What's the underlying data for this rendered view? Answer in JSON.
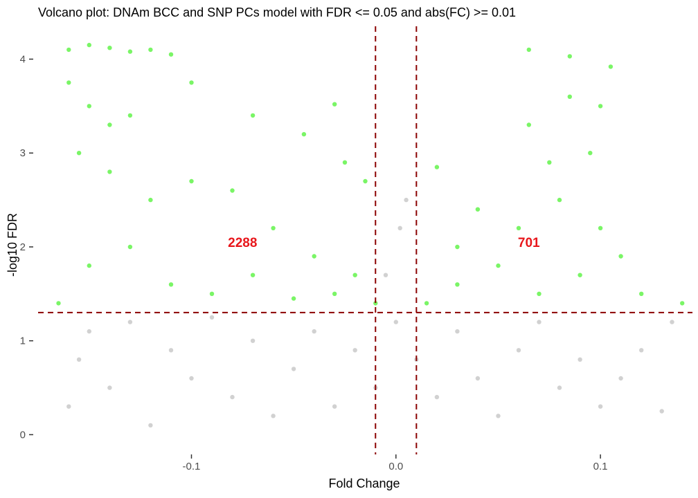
{
  "chart_data": {
    "type": "scatter",
    "title": "Volcano plot: DNAm BCC and SNP PCs model with FDR <= 0.05 and abs(FC) >= 0.01",
    "xlabel": "Fold Change",
    "ylabel": "-log10 FDR",
    "xlim": [
      -0.175,
      0.145
    ],
    "ylim": [
      -0.1,
      4.35
    ],
    "x_ticks": [
      {
        "value": -0.1,
        "label": "-0.1"
      },
      {
        "value": 0.0,
        "label": "0.0"
      },
      {
        "value": 0.1,
        "label": "0.1"
      }
    ],
    "y_ticks": [
      {
        "value": 0,
        "label": "0"
      },
      {
        "value": 1,
        "label": "1"
      },
      {
        "value": 2,
        "label": "2"
      },
      {
        "value": 3,
        "label": "3"
      },
      {
        "value": 4,
        "label": "4"
      }
    ],
    "grid": false,
    "legend": "none",
    "thresholds": {
      "fdr_line_y": 1.30103,
      "fc_lines_x": [
        -0.01,
        0.01
      ],
      "line_color": "#8b0000"
    },
    "series": [
      {
        "group": "not-significant",
        "color": "#b3b3b3",
        "points": [
          [
            -0.16,
            0.3
          ],
          [
            -0.155,
            0.8
          ],
          [
            -0.15,
            1.1
          ],
          [
            -0.14,
            0.5
          ],
          [
            -0.13,
            1.2
          ],
          [
            -0.12,
            0.1
          ],
          [
            -0.11,
            0.9
          ],
          [
            -0.1,
            0.6
          ],
          [
            -0.09,
            1.25
          ],
          [
            -0.08,
            0.4
          ],
          [
            -0.07,
            1.0
          ],
          [
            -0.06,
            0.2
          ],
          [
            -0.05,
            0.7
          ],
          [
            -0.04,
            1.1
          ],
          [
            -0.03,
            0.3
          ],
          [
            -0.02,
            0.9
          ],
          [
            -0.01,
            0.5
          ],
          [
            0.0,
            1.2
          ],
          [
            0.005,
            2.5
          ],
          [
            0.002,
            2.2
          ],
          [
            -0.005,
            1.7
          ],
          [
            0.01,
            0.8
          ],
          [
            0.02,
            0.4
          ],
          [
            0.03,
            1.1
          ],
          [
            0.04,
            0.6
          ],
          [
            0.05,
            0.2
          ],
          [
            0.06,
            0.9
          ],
          [
            0.07,
            1.2
          ],
          [
            0.08,
            0.5
          ],
          [
            0.09,
            0.8
          ],
          [
            0.1,
            0.3
          ],
          [
            0.11,
            0.6
          ],
          [
            0.12,
            0.9
          ],
          [
            0.13,
            0.25
          ],
          [
            0.135,
            1.2
          ]
        ]
      },
      {
        "group": "significant-down",
        "color": "#22ee00",
        "count_label": "2288",
        "count_position": [
          -0.075,
          2.05
        ],
        "points": [
          [
            -0.16,
            4.1
          ],
          [
            -0.15,
            4.15
          ],
          [
            -0.14,
            4.12
          ],
          [
            -0.13,
            4.08
          ],
          [
            -0.12,
            4.1
          ],
          [
            -0.11,
            4.05
          ],
          [
            -0.16,
            3.75
          ],
          [
            -0.15,
            3.5
          ],
          [
            -0.14,
            3.3
          ],
          [
            -0.13,
            3.4
          ],
          [
            -0.1,
            3.75
          ],
          [
            -0.07,
            3.4
          ],
          [
            -0.03,
            3.52
          ],
          [
            -0.155,
            3.0
          ],
          [
            -0.14,
            2.8
          ],
          [
            -0.12,
            2.5
          ],
          [
            -0.1,
            2.7
          ],
          [
            -0.08,
            2.6
          ],
          [
            -0.06,
            2.2
          ],
          [
            -0.04,
            1.9
          ],
          [
            -0.02,
            1.7
          ],
          [
            -0.01,
            1.4
          ],
          [
            -0.165,
            1.4
          ],
          [
            -0.15,
            1.8
          ],
          [
            -0.13,
            2.0
          ],
          [
            -0.11,
            1.6
          ],
          [
            -0.09,
            1.5
          ],
          [
            -0.07,
            1.7
          ],
          [
            -0.05,
            1.45
          ],
          [
            -0.03,
            1.5
          ],
          [
            -0.045,
            3.2
          ],
          [
            -0.025,
            2.9
          ],
          [
            -0.015,
            2.7
          ]
        ]
      },
      {
        "group": "significant-up",
        "color": "#22ee00",
        "count_label": "701",
        "count_position": [
          0.065,
          2.05
        ],
        "points": [
          [
            0.065,
            4.1
          ],
          [
            0.085,
            4.03
          ],
          [
            0.105,
            3.92
          ],
          [
            0.065,
            3.3
          ],
          [
            0.085,
            3.6
          ],
          [
            0.095,
            3.0
          ],
          [
            0.02,
            2.85
          ],
          [
            0.04,
            2.4
          ],
          [
            0.06,
            2.2
          ],
          [
            0.08,
            2.5
          ],
          [
            0.1,
            2.2
          ],
          [
            0.11,
            1.9
          ],
          [
            0.015,
            1.4
          ],
          [
            0.03,
            1.6
          ],
          [
            0.05,
            1.8
          ],
          [
            0.07,
            1.5
          ],
          [
            0.09,
            1.7
          ],
          [
            0.12,
            1.5
          ],
          [
            0.14,
            1.4
          ],
          [
            0.03,
            2.0
          ],
          [
            0.075,
            2.9
          ],
          [
            0.1,
            3.5
          ]
        ]
      }
    ]
  }
}
